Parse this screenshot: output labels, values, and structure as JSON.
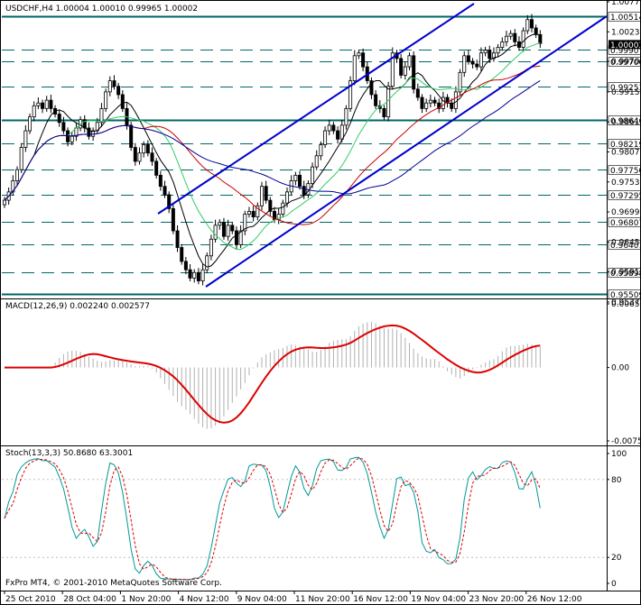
{
  "window": {
    "symbol_info": "USDCHF,H4  1.00004 1.00010 0.99965 1.00002",
    "copyright": "FxPro MT4, © 2001-2010 MetaQuotes Software Corp."
  },
  "colors": {
    "background": "#ffffff",
    "frame": "#000000",
    "candle": "#000000",
    "level_line": "#006666",
    "channel": "#0000cc",
    "ma_fast": "#000000",
    "ma_mid": "#33cc66",
    "ma_slow": "#cc0000",
    "ma_long": "#000099",
    "macd_hist": "#b0b0b0",
    "macd_signal": "#dd0000",
    "stoch_main": "#009999",
    "stoch_signal": "#dd0000"
  },
  "chart_data": [
    {
      "type": "candlestick",
      "title": "USDCHF,H4  1.00004 1.00010 0.99965 1.00002",
      "ylim": [
        0.9545,
        1.0077
      ],
      "price_ticks": [
        "1.00770",
        "1.00230",
        "0.99700",
        "0.99150",
        "0.98610",
        "0.98070",
        "0.97530",
        "0.96990",
        "0.96450",
        "0.95910",
        "0.95370"
      ],
      "level_labels": [
        "1.00514",
        "0.99907",
        "0.99700",
        "0.99253",
        "0.98646",
        "0.98219",
        "0.97750",
        "0.97295",
        "0.96807",
        "0.96401",
        "0.95898",
        "0.95509"
      ],
      "current_price_label": "1.00002",
      "levels": [
        1.00514,
        0.99907,
        0.997,
        0.99253,
        0.98646,
        0.98219,
        0.9775,
        0.97295,
        0.96807,
        0.96401,
        0.95898,
        0.95509
      ],
      "bold_levels": [
        1.00514,
        0.98646,
        0.95509
      ],
      "x_labels": [
        "25 Oct 2010",
        "28 Oct 04:00",
        "1 Nov 20:00",
        "4 Nov 12:00",
        "9 Nov 04:00",
        "11 Nov 20:00",
        "16 Nov 12:00",
        "19 Nov 04:00",
        "23 Nov 20:00",
        "26 Nov 12:00"
      ],
      "close": [
        0.972,
        0.9735,
        0.9755,
        0.9775,
        0.9815,
        0.9845,
        0.987,
        0.989,
        0.9895,
        0.9885,
        0.99,
        0.9885,
        0.9875,
        0.986,
        0.9845,
        0.9825,
        0.9835,
        0.985,
        0.9865,
        0.985,
        0.9835,
        0.9845,
        0.986,
        0.9885,
        0.9915,
        0.9935,
        0.9925,
        0.991,
        0.9885,
        0.9855,
        0.9815,
        0.979,
        0.9805,
        0.982,
        0.9805,
        0.979,
        0.9765,
        0.9745,
        0.973,
        0.9705,
        0.9665,
        0.9635,
        0.961,
        0.9595,
        0.958,
        0.959,
        0.9575,
        0.9595,
        0.962,
        0.965,
        0.9675,
        0.968,
        0.9655,
        0.9675,
        0.9665,
        0.964,
        0.9665,
        0.9695,
        0.97,
        0.969,
        0.971,
        0.9745,
        0.972,
        0.97,
        0.9685,
        0.9695,
        0.9715,
        0.9735,
        0.9755,
        0.9765,
        0.9745,
        0.973,
        0.975,
        0.978,
        0.98,
        0.982,
        0.9845,
        0.9855,
        0.9845,
        0.983,
        0.9855,
        0.9885,
        0.9935,
        0.998,
        0.9985,
        0.996,
        0.9935,
        0.991,
        0.989,
        0.9885,
        0.987,
        0.9925,
        0.9985,
        0.9975,
        0.9945,
        0.996,
        0.998,
        0.992,
        0.9905,
        0.9885,
        0.9895,
        0.99,
        0.9895,
        0.9885,
        0.9905,
        0.9895,
        0.9885,
        0.9915,
        0.995,
        0.998,
        0.997,
        0.9965,
        0.996,
        0.9985,
        0.999,
        0.9975,
        0.9985,
        0.9995,
        1.0005,
        1.0015,
        1.002,
        1.0005,
        0.9995,
        1.0025,
        1.0045,
        1.003,
        1.0018,
        1.0002
      ],
      "macd": {
        "label": "MACD(12,26,9) 0.002240 0.002577",
        "ylim": [
          -0.00755,
          0.00655
        ],
        "ticks": [
          "0.00655",
          "0.00",
          "-0.00755"
        ]
      },
      "stoch": {
        "label": "Stoch(13,3,3) 50.8680 63.3001",
        "ylim": [
          0,
          100
        ],
        "ticks": [
          "100",
          "80",
          "20",
          "0"
        ]
      }
    }
  ]
}
